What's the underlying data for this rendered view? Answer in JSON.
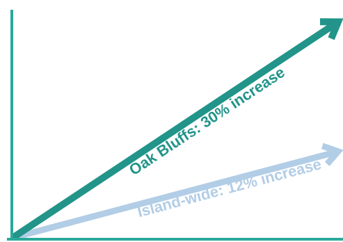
{
  "chart_data": {
    "type": "line",
    "title": "",
    "xlabel": "",
    "ylabel": "",
    "grid": false,
    "series": [
      {
        "label": "Oak Bluffs: 30% increase",
        "increase_pct": 30,
        "color": "#22948a"
      },
      {
        "label": "Island-wide: 12% increase",
        "increase_pct": 12,
        "color": "#b2cde6"
      }
    ],
    "axis_color": "#2aa99b"
  }
}
